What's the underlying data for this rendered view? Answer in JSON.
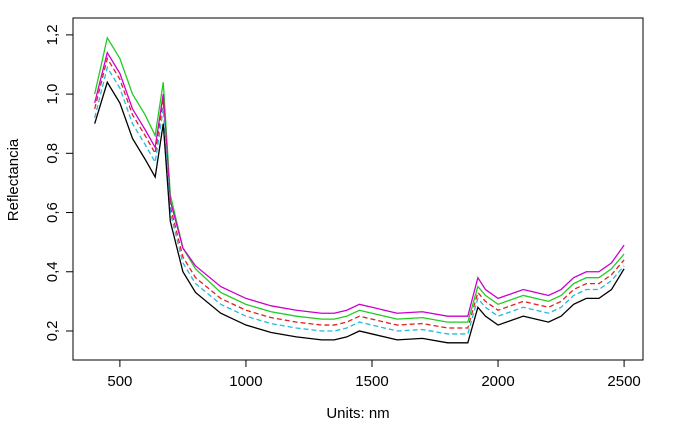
{
  "chart_data": {
    "type": "line",
    "xlabel": "Units: nm",
    "ylabel": "Reflectancia",
    "x": [
      400,
      450,
      500,
      550,
      600,
      640,
      672,
      700,
      750,
      800,
      900,
      1000,
      1100,
      1200,
      1300,
      1350,
      1400,
      1450,
      1500,
      1600,
      1700,
      1800,
      1880,
      1920,
      1950,
      2000,
      2100,
      2150,
      2200,
      2250,
      2300,
      2350,
      2400,
      2450,
      2500
    ],
    "series": [
      {
        "color": "#22cc22",
        "dashed": false,
        "values": [
          1.0,
          1.19,
          1.12,
          1.0,
          0.93,
          0.86,
          1.04,
          0.66,
          0.48,
          0.41,
          0.33,
          0.29,
          0.265,
          0.25,
          0.24,
          0.24,
          0.25,
          0.27,
          0.26,
          0.24,
          0.245,
          0.23,
          0.23,
          0.35,
          0.32,
          0.29,
          0.32,
          0.31,
          0.3,
          0.32,
          0.36,
          0.38,
          0.38,
          0.41,
          0.46
        ]
      },
      {
        "color": "#cc00cc",
        "dashed": false,
        "values": [
          0.97,
          1.14,
          1.07,
          0.95,
          0.88,
          0.82,
          1.0,
          0.64,
          0.48,
          0.42,
          0.35,
          0.31,
          0.285,
          0.27,
          0.26,
          0.26,
          0.27,
          0.29,
          0.28,
          0.26,
          0.265,
          0.25,
          0.25,
          0.38,
          0.34,
          0.31,
          0.34,
          0.33,
          0.32,
          0.34,
          0.38,
          0.4,
          0.4,
          0.43,
          0.49
        ]
      },
      {
        "color": "#dd2222",
        "dashed": true,
        "values": [
          0.95,
          1.12,
          1.05,
          0.93,
          0.86,
          0.8,
          0.98,
          0.62,
          0.45,
          0.38,
          0.31,
          0.27,
          0.245,
          0.23,
          0.22,
          0.22,
          0.23,
          0.25,
          0.24,
          0.22,
          0.225,
          0.21,
          0.21,
          0.33,
          0.3,
          0.27,
          0.3,
          0.29,
          0.28,
          0.3,
          0.34,
          0.36,
          0.36,
          0.39,
          0.44
        ]
      },
      {
        "color": "#22bbdd",
        "dashed": true,
        "values": [
          0.92,
          1.09,
          1.02,
          0.9,
          0.83,
          0.77,
          0.95,
          0.6,
          0.43,
          0.36,
          0.29,
          0.25,
          0.225,
          0.21,
          0.2,
          0.2,
          0.21,
          0.23,
          0.22,
          0.2,
          0.205,
          0.19,
          0.19,
          0.31,
          0.28,
          0.25,
          0.28,
          0.27,
          0.26,
          0.28,
          0.32,
          0.34,
          0.34,
          0.37,
          0.42
        ]
      },
      {
        "color": "#000000",
        "dashed": false,
        "values": [
          0.9,
          1.04,
          0.97,
          0.85,
          0.78,
          0.72,
          0.9,
          0.57,
          0.4,
          0.33,
          0.26,
          0.22,
          0.195,
          0.18,
          0.17,
          0.17,
          0.18,
          0.2,
          0.19,
          0.17,
          0.175,
          0.16,
          0.16,
          0.28,
          0.25,
          0.22,
          0.25,
          0.24,
          0.23,
          0.25,
          0.29,
          0.31,
          0.31,
          0.34,
          0.41
        ]
      }
    ],
    "xlim": [
      314,
      2575
    ],
    "ylim": [
      0.102,
      1.257
    ],
    "xticks": [
      500,
      1000,
      1500,
      2000,
      2500
    ],
    "yticks": [
      {
        "value": 0.2,
        "label": "0,2"
      },
      {
        "value": 0.4,
        "label": "0,4"
      },
      {
        "value": 0.6,
        "label": "0,6"
      },
      {
        "value": 0.8,
        "label": "0,8"
      },
      {
        "value": 1.0,
        "label": "1,0"
      },
      {
        "value": 1.2,
        "label": "1,2"
      }
    ]
  }
}
